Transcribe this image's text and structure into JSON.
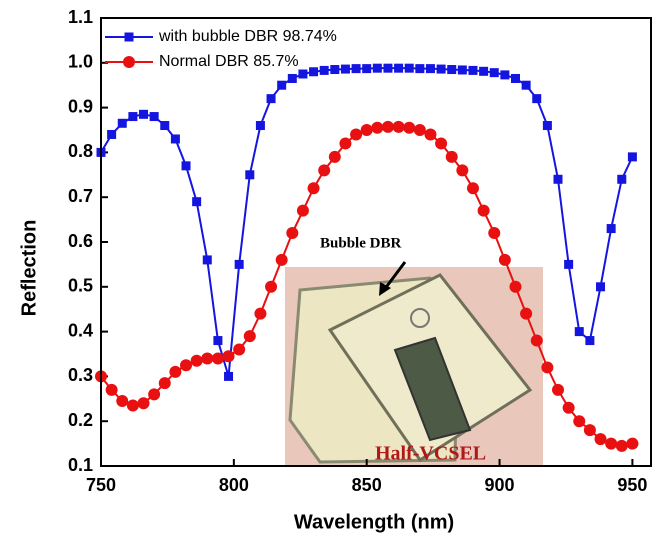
{
  "chart_data": {
    "type": "line",
    "x_label": "Wavelength (nm)",
    "y_label": "Reflection",
    "x": [
      750,
      754,
      758,
      762,
      766,
      770,
      774,
      778,
      782,
      786,
      790,
      794,
      798,
      802,
      806,
      810,
      814,
      818,
      822,
      826,
      830,
      834,
      838,
      842,
      846,
      850,
      854,
      858,
      862,
      866,
      870,
      874,
      878,
      882,
      886,
      890,
      894,
      898,
      902,
      906,
      910,
      914,
      918,
      922,
      926,
      930,
      934,
      938,
      942,
      946,
      950
    ],
    "series": [
      {
        "name": "with bubble DBR 98.74%",
        "color": "#1515e0",
        "marker": "square",
        "values": [
          0.8,
          0.84,
          0.865,
          0.88,
          0.885,
          0.88,
          0.86,
          0.83,
          0.77,
          0.69,
          0.56,
          0.38,
          0.3,
          0.55,
          0.75,
          0.86,
          0.92,
          0.95,
          0.965,
          0.975,
          0.98,
          0.983,
          0.985,
          0.986,
          0.987,
          0.987,
          0.988,
          0.988,
          0.988,
          0.988,
          0.987,
          0.987,
          0.986,
          0.985,
          0.984,
          0.983,
          0.981,
          0.978,
          0.973,
          0.965,
          0.95,
          0.92,
          0.86,
          0.74,
          0.55,
          0.4,
          0.38,
          0.5,
          0.63,
          0.74,
          0.79
        ]
      },
      {
        "name": "Normal DBR 85.7%",
        "color": "#e81010",
        "marker": "circle",
        "values": [
          0.3,
          0.27,
          0.245,
          0.235,
          0.24,
          0.26,
          0.285,
          0.31,
          0.325,
          0.335,
          0.34,
          0.34,
          0.345,
          0.36,
          0.39,
          0.44,
          0.5,
          0.56,
          0.62,
          0.67,
          0.72,
          0.76,
          0.79,
          0.82,
          0.84,
          0.85,
          0.855,
          0.857,
          0.857,
          0.855,
          0.85,
          0.84,
          0.82,
          0.79,
          0.76,
          0.72,
          0.67,
          0.62,
          0.56,
          0.5,
          0.44,
          0.38,
          0.32,
          0.27,
          0.23,
          0.2,
          0.18,
          0.16,
          0.15,
          0.145,
          0.15
        ]
      }
    ],
    "xlim": [
      750,
      957
    ],
    "xticks": [
      750,
      800,
      850,
      900,
      950
    ],
    "ylim": [
      0.1,
      1.1
    ],
    "yticks": [
      0.1,
      0.2,
      0.3,
      0.4,
      0.5,
      0.6,
      0.7,
      0.8,
      0.9,
      {
        "value": 1.0,
        "label": "1.0"
      },
      1.1
    ],
    "legend": "upper left",
    "annotations": [
      "Bubble DBR",
      "Half-VCSEL"
    ]
  }
}
